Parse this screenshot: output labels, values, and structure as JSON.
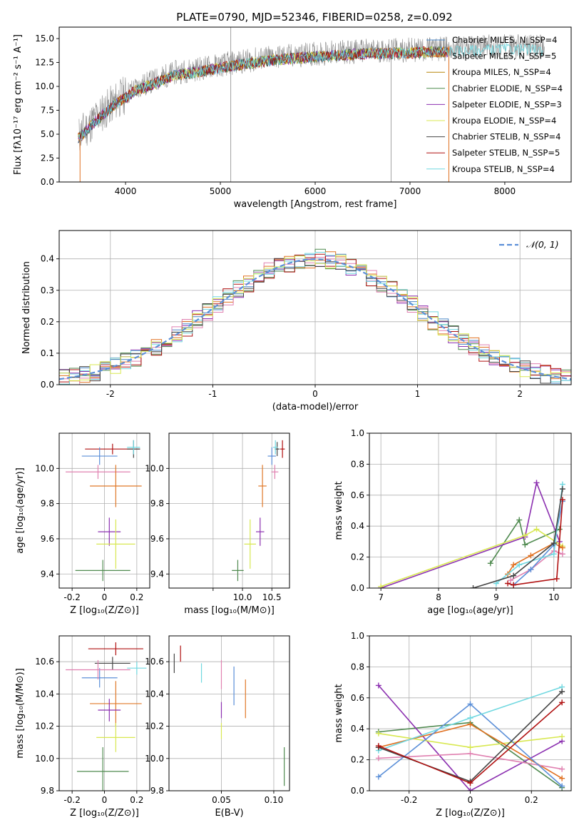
{
  "figure_title": "PLATE=0790, MJD=52346, FIBERID=0258, z=0.092",
  "colors": {
    "cm": "#4a86c5",
    "sm": "#e07020",
    "km": "#b8860b",
    "ce": "#4f8a4f",
    "se": "#8b2fb0",
    "ke": "#d8e850",
    "cs": "#444444",
    "ss": "#b01010",
    "ks": "#70d8e0",
    "mid": "#8a8a8a",
    "pink": "#e080b0",
    "blue": "#5b8fd8",
    "orange": "#e07828",
    "normal": "#5b8fd8"
  },
  "chart_data": [
    {
      "id": "spectrum",
      "type": "line",
      "title": "PLATE=0790, MJD=52346, FIBERID=0258, z=0.092",
      "xlabel": "wavelength [Angstrom, rest frame]",
      "ylabel": "Flux [fλ10⁻¹⁷ erg cm⁻² s⁻¹ A⁻¹]",
      "xlim": [
        3300,
        8700
      ],
      "ylim": [
        0,
        16.2
      ],
      "xticks": [
        4000,
        5000,
        6000,
        7000,
        8000
      ],
      "yticks": [
        0.0,
        2.5,
        5.0,
        7.5,
        10.0,
        12.5,
        15.0
      ],
      "grid": false,
      "legend_position": "upper-right",
      "series": [
        {
          "name": "Chabrier MILES, N_SSP=4",
          "color": "cm"
        },
        {
          "name": "Salpeter MILES, N_SSP=5",
          "color": "sm"
        },
        {
          "name": "Kroupa MILES, N_SSP=4",
          "color": "km"
        },
        {
          "name": "Chabrier ELODIE, N_SSP=4",
          "color": "ce"
        },
        {
          "name": "Salpeter ELODIE, N_SSP=3",
          "color": "se"
        },
        {
          "name": "Kroupa ELODIE, N_SSP=4",
          "color": "ke"
        },
        {
          "name": "Chabrier STELIB, N_SSP=4",
          "color": "cs"
        },
        {
          "name": "Salpeter STELIB, N_SSP=5",
          "color": "ss"
        },
        {
          "name": "Kroupa STELIB, N_SSP=4",
          "color": "ks"
        }
      ],
      "continuum": {
        "x": [
          3500,
          3700,
          3900,
          4100,
          4300,
          4500,
          4800,
          5100,
          5500,
          6000,
          6500,
          7000,
          7500,
          8000,
          8400
        ],
        "y": [
          4.8,
          6.8,
          8.5,
          9.8,
          10.6,
          11.4,
          11.9,
          12.4,
          13.0,
          13.4,
          13.7,
          13.8,
          14.0,
          14.2,
          14.1
        ]
      }
    },
    {
      "id": "residuals",
      "type": "line",
      "xlabel": "(data-model)/error",
      "ylabel": "Normed distribution",
      "xlim": [
        -2.5,
        2.5
      ],
      "ylim": [
        0,
        0.49
      ],
      "xticks": [
        -2,
        -1,
        0,
        1,
        2
      ],
      "yticks": [
        0.0,
        0.1,
        0.2,
        0.3,
        0.4
      ],
      "grid": true,
      "legend_position": "upper-right",
      "normal_label": "𝒩(0, 1)",
      "bins": 50,
      "series": [
        {
          "color": "ce",
          "amp": 0.034,
          "seed": 1
        },
        {
          "color": "se",
          "amp": 0.03,
          "seed": 2
        },
        {
          "color": "cm",
          "amp": 0.028,
          "seed": 3
        },
        {
          "color": "sm",
          "amp": 0.03,
          "seed": 4
        },
        {
          "color": "pink",
          "amp": 0.03,
          "seed": 5
        },
        {
          "color": "ss",
          "amp": 0.03,
          "seed": 6
        },
        {
          "color": "ks",
          "amp": 0.026,
          "seed": 7
        },
        {
          "color": "cs",
          "amp": 0.028,
          "seed": 8
        },
        {
          "color": "ke",
          "amp": 0.026,
          "seed": 9
        }
      ]
    },
    {
      "id": "z-age",
      "type": "scatter",
      "xlabel": "Z [log₁₀(Z/Z⊙)]",
      "ylabel": "age  [log₁₀(age/yr)]",
      "xlim": [
        -0.28,
        0.28
      ],
      "ylim": [
        9.32,
        10.2
      ],
      "xticks": [
        -0.2,
        0.0,
        0.2
      ],
      "yticks": [
        9.4,
        9.6,
        9.8,
        10.0
      ],
      "grid": true,
      "points": [
        {
          "x": 0.05,
          "y": 10.11,
          "xerr": 0.17,
          "yerr": 0.03,
          "color": "ss"
        },
        {
          "x": 0.18,
          "y": 10.11,
          "xerr": 0.04,
          "yerr": 0.05,
          "color": "cs"
        },
        {
          "x": 0.18,
          "y": 10.12,
          "xerr": 0.04,
          "yerr": 0.04,
          "color": "ks"
        },
        {
          "x": -0.03,
          "y": 10.07,
          "xerr": 0.11,
          "yerr": 0.05,
          "color": "blue"
        },
        {
          "x": -0.04,
          "y": 9.98,
          "xerr": 0.2,
          "yerr": 0.04,
          "color": "pink"
        },
        {
          "x": 0.07,
          "y": 9.9,
          "xerr": 0.16,
          "yerr": 0.12,
          "color": "orange"
        },
        {
          "x": 0.03,
          "y": 9.64,
          "xerr": 0.07,
          "yerr": 0.08,
          "color": "se"
        },
        {
          "x": 0.07,
          "y": 9.57,
          "xerr": 0.12,
          "yerr": 0.14,
          "color": "ke"
        },
        {
          "x": -0.01,
          "y": 9.42,
          "xerr": 0.17,
          "yerr": 0.06,
          "color": "ce"
        }
      ]
    },
    {
      "id": "mass-age",
      "type": "scatter",
      "xlabel": "mass [log₁₀(M/M⊙)]",
      "xlim": [
        8.75,
        10.8
      ],
      "ylim": [
        9.32,
        10.2
      ],
      "xticks": [
        9.5,
        10.0,
        10.5
      ],
      "xticklabels": [
        "",
        "10.0",
        "10.5"
      ],
      "yticks": [
        9.4,
        9.6,
        9.8,
        10.0
      ],
      "grid": true,
      "points": [
        {
          "x": 10.68,
          "y": 10.11,
          "xerr": 0.04,
          "yerr": 0.05,
          "color": "ss"
        },
        {
          "x": 10.59,
          "y": 10.11,
          "xerr": 0.04,
          "yerr": 0.04,
          "color": "cs"
        },
        {
          "x": 10.56,
          "y": 10.12,
          "xerr": 0.04,
          "yerr": 0.04,
          "color": "ks"
        },
        {
          "x": 10.5,
          "y": 10.07,
          "xerr": 0.07,
          "yerr": 0.05,
          "color": "blue"
        },
        {
          "x": 10.55,
          "y": 9.98,
          "xerr": 0.06,
          "yerr": 0.04,
          "color": "pink"
        },
        {
          "x": 10.34,
          "y": 9.9,
          "xerr": 0.07,
          "yerr": 0.12,
          "color": "orange"
        },
        {
          "x": 10.3,
          "y": 9.64,
          "xerr": 0.07,
          "yerr": 0.08,
          "color": "se"
        },
        {
          "x": 10.13,
          "y": 9.57,
          "xerr": 0.1,
          "yerr": 0.14,
          "color": "ke"
        },
        {
          "x": 9.92,
          "y": 9.42,
          "xerr": 0.1,
          "yerr": 0.06,
          "color": "ce"
        }
      ]
    },
    {
      "id": "age-weight",
      "type": "line",
      "xlabel": "age  [log₁₀(age/yr)]",
      "ylabel": "mass weight",
      "xlim": [
        6.8,
        10.3
      ],
      "ylim": [
        0,
        1.0
      ],
      "xticks": [
        7,
        8,
        9,
        10
      ],
      "yticks": [
        0.0,
        0.2,
        0.4,
        0.6,
        0.8,
        1.0
      ],
      "grid": true,
      "series": [
        {
          "color": "ce",
          "x": [
            8.9,
            9.4,
            9.5,
            10.1
          ],
          "y": [
            0.16,
            0.44,
            0.28,
            0.38
          ]
        },
        {
          "color": "se",
          "x": [
            7.0,
            9.5,
            9.7,
            10.1
          ],
          "y": [
            0.0,
            0.33,
            0.68,
            0.3
          ]
        },
        {
          "color": "ke",
          "x": [
            7.0,
            9.5,
            9.7,
            10.15
          ],
          "y": [
            0.01,
            0.34,
            0.38,
            0.27
          ]
        },
        {
          "color": "sm",
          "x": [
            9.2,
            9.3,
            9.6,
            10.0,
            10.15
          ],
          "y": [
            0.09,
            0.15,
            0.21,
            0.29,
            0.26
          ]
        },
        {
          "color": "pink",
          "x": [
            9.25,
            9.6,
            10.0,
            10.15
          ],
          "y": [
            0.05,
            0.12,
            0.24,
            0.22
          ]
        },
        {
          "color": "blue",
          "x": [
            9.3,
            9.6,
            10.0,
            10.15
          ],
          "y": [
            0.02,
            0.12,
            0.28,
            0.56
          ]
        },
        {
          "color": "ks",
          "x": [
            9.0,
            9.4,
            10.0,
            10.15
          ],
          "y": [
            0.03,
            0.15,
            0.22,
            0.67
          ]
        },
        {
          "color": "cs",
          "x": [
            8.6,
            9.3,
            10.0,
            10.15
          ],
          "y": [
            0.0,
            0.08,
            0.29,
            0.64
          ]
        },
        {
          "color": "ss",
          "x": [
            9.2,
            9.3,
            10.05,
            10.15
          ],
          "y": [
            0.03,
            0.02,
            0.06,
            0.57
          ]
        }
      ]
    },
    {
      "id": "z-mass",
      "type": "scatter",
      "xlabel": "Z [log₁₀(Z/Z⊙)]",
      "ylabel": "mass [log₁₀(M/M⊙)]",
      "xlim": [
        -0.28,
        0.28
      ],
      "ylim": [
        9.8,
        10.76
      ],
      "xticks": [
        -0.2,
        0.0,
        0.2
      ],
      "yticks": [
        9.8,
        10.0,
        10.2,
        10.4,
        10.6
      ],
      "grid": true,
      "points": [
        {
          "x": 0.07,
          "y": 10.68,
          "xerr": 0.17,
          "yerr": 0.04,
          "color": "ss"
        },
        {
          "x": 0.05,
          "y": 10.59,
          "xerr": 0.11,
          "yerr": 0.04,
          "color": "cs"
        },
        {
          "x": 0.2,
          "y": 10.56,
          "xerr": 0.06,
          "yerr": 0.04,
          "color": "ks"
        },
        {
          "x": -0.03,
          "y": 10.5,
          "xerr": 0.11,
          "yerr": 0.06,
          "color": "blue"
        },
        {
          "x": -0.04,
          "y": 10.55,
          "xerr": 0.2,
          "yerr": 0.06,
          "color": "pink"
        },
        {
          "x": 0.07,
          "y": 10.34,
          "xerr": 0.16,
          "yerr": 0.14,
          "color": "orange"
        },
        {
          "x": 0.03,
          "y": 10.3,
          "xerr": 0.07,
          "yerr": 0.07,
          "color": "se"
        },
        {
          "x": 0.07,
          "y": 10.13,
          "xerr": 0.12,
          "yerr": 0.09,
          "color": "ke"
        },
        {
          "x": -0.01,
          "y": 9.92,
          "xerr": 0.16,
          "yerr": 0.15,
          "color": "ce"
        }
      ]
    },
    {
      "id": "ebv-mass",
      "type": "scatter",
      "xlabel": "E(B-V)",
      "xlim": [
        0.0,
        0.115
      ],
      "ylim": [
        9.8,
        10.76
      ],
      "xticks": [
        0.05,
        0.1
      ],
      "xticklabels": [
        "0.05",
        "0.10"
      ],
      "yticks": [
        9.8,
        10.0,
        10.2,
        10.4,
        10.6
      ],
      "grid": true,
      "points": [
        {
          "x": 0.011,
          "y": 10.65,
          "xerr": 0,
          "yerr": 0.05,
          "color": "ss"
        },
        {
          "x": 0.005,
          "y": 10.59,
          "xerr": 0,
          "yerr": 0.06,
          "color": "cs"
        },
        {
          "x": 0.031,
          "y": 10.53,
          "xerr": 0,
          "yerr": 0.06,
          "color": "ks"
        },
        {
          "x": 0.062,
          "y": 10.45,
          "xerr": 0,
          "yerr": 0.12,
          "color": "blue"
        },
        {
          "x": 0.05,
          "y": 10.52,
          "xerr": 0,
          "yerr": 0.09,
          "color": "pink"
        },
        {
          "x": 0.073,
          "y": 10.37,
          "xerr": 0,
          "yerr": 0.12,
          "color": "orange"
        },
        {
          "x": 0.05,
          "y": 10.3,
          "xerr": 0,
          "yerr": 0.05,
          "color": "se"
        },
        {
          "x": 0.05,
          "y": 10.17,
          "xerr": 0,
          "yerr": 0.05,
          "color": "ke"
        },
        {
          "x": 0.11,
          "y": 9.95,
          "xerr": 0,
          "yerr": 0.12,
          "color": "ce"
        }
      ]
    },
    {
      "id": "z-weight",
      "type": "line",
      "xlabel": "Z [log₁₀(Z/Z⊙)]",
      "ylabel": "mass weight",
      "xlim": [
        -0.33,
        0.33
      ],
      "ylim": [
        0,
        1.0
      ],
      "xticks": [
        -0.2,
        0.0,
        0.2
      ],
      "yticks": [
        0.0,
        0.2,
        0.4,
        0.6,
        0.8,
        1.0
      ],
      "grid": true,
      "series": [
        {
          "color": "ce",
          "x": [
            -0.3,
            0.0,
            0.3
          ],
          "y": [
            0.38,
            0.44,
            0.02
          ]
        },
        {
          "color": "se",
          "x": [
            -0.3,
            0.0,
            0.3
          ],
          "y": [
            0.68,
            0.0,
            0.32
          ]
        },
        {
          "color": "ke",
          "x": [
            -0.3,
            0.0,
            0.3
          ],
          "y": [
            0.37,
            0.28,
            0.35
          ]
        },
        {
          "color": "sm",
          "x": [
            -0.3,
            0.0,
            0.3
          ],
          "y": [
            0.28,
            0.43,
            0.08
          ]
        },
        {
          "color": "pink",
          "x": [
            -0.3,
            0.0,
            0.3
          ],
          "y": [
            0.21,
            0.24,
            0.14
          ]
        },
        {
          "color": "blue",
          "x": [
            -0.3,
            0.0,
            0.3
          ],
          "y": [
            0.09,
            0.56,
            0.03
          ]
        },
        {
          "color": "ks",
          "x": [
            -0.3,
            0.0,
            0.3
          ],
          "y": [
            0.26,
            0.47,
            0.67
          ]
        },
        {
          "color": "cs",
          "x": [
            -0.3,
            0.0,
            0.3
          ],
          "y": [
            0.28,
            0.06,
            0.64
          ]
        },
        {
          "color": "ss",
          "x": [
            -0.3,
            0.0,
            0.3
          ],
          "y": [
            0.29,
            0.05,
            0.57
          ]
        }
      ]
    }
  ]
}
